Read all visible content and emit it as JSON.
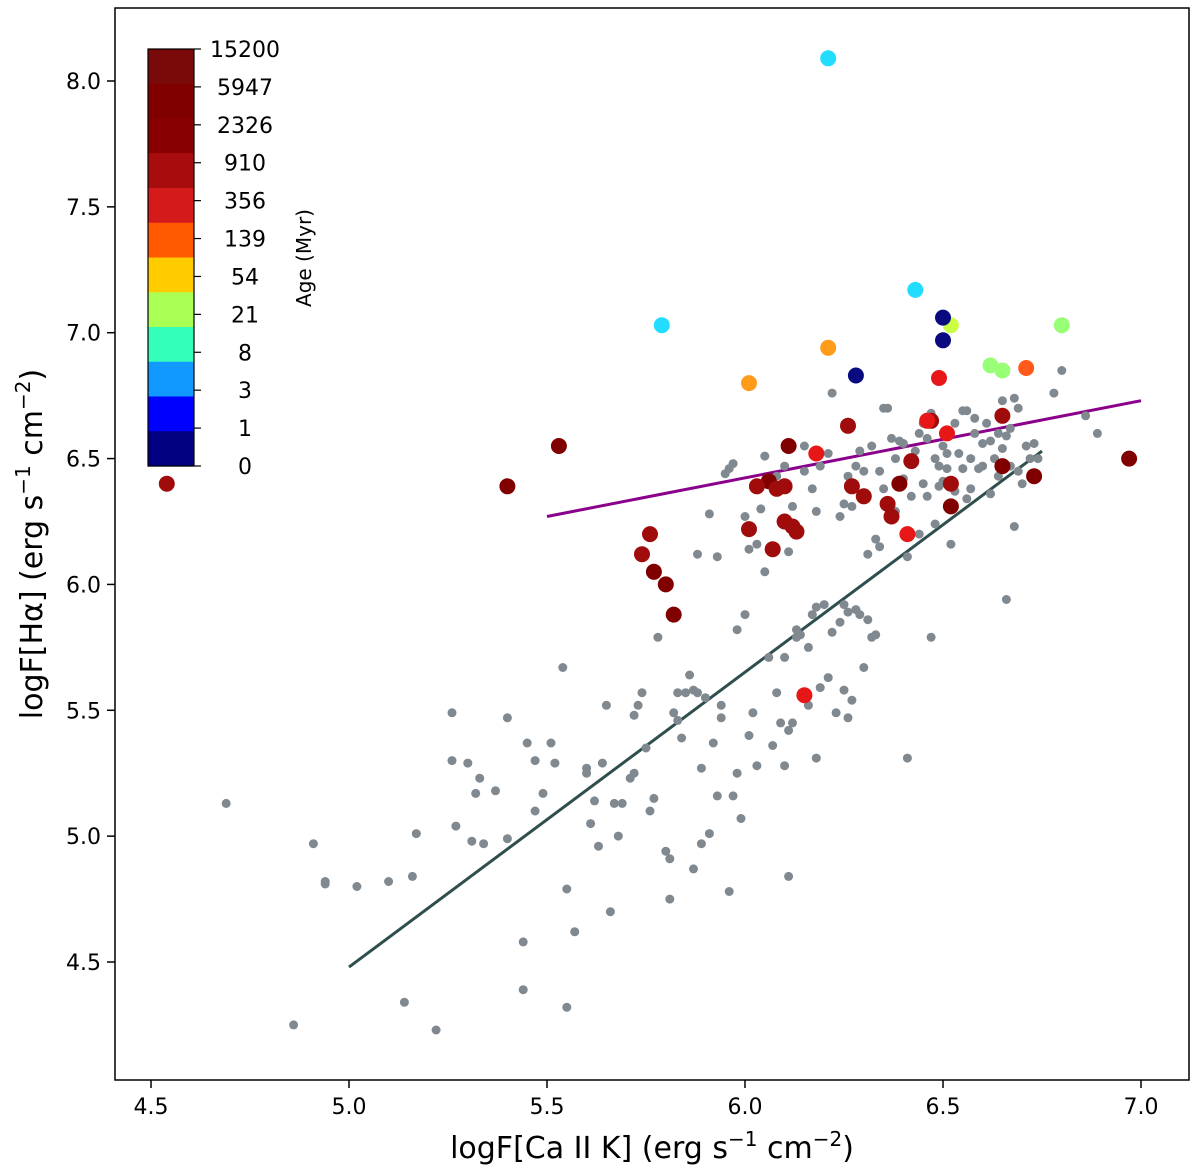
{
  "chart_data": {
    "type": "scatter",
    "xlabel_main": "logF[Ca II K] (erg s",
    "xlabel_sup": "−1",
    "xlabel_mid": " cm",
    "xlabel_sup2": "−2",
    "xlabel_end": ")",
    "ylabel_main": "logF[Hα] (erg s",
    "ylabel_sup": "−1",
    "ylabel_mid": " cm",
    "ylabel_sup2": "−2",
    "ylabel_end": ")",
    "xlim": [
      4.4,
      7.2
    ],
    "ylim": [
      4.0,
      8.3
    ],
    "xticks": [
      "4.5",
      "5.0",
      "5.5",
      "6.0",
      "6.5",
      "7.0"
    ],
    "yticks": [
      "4.5",
      "5.0",
      "5.5",
      "6.0",
      "6.5",
      "7.0",
      "7.5",
      "8.0"
    ],
    "grid": false,
    "colorbar": {
      "title": "Age (Myr)",
      "labels": [
        "15200",
        "5947",
        "2326",
        "910",
        "356",
        "139",
        "54",
        "21",
        "8",
        "3",
        "1",
        "0"
      ],
      "colors": [
        "#7a0a0a",
        "#800000",
        "#880000",
        "#a80d0d",
        "#d41a1a",
        "#ff5a00",
        "#ffcc00",
        "#aaff55",
        "#33ffbb",
        "#1199ff",
        "#0000ff",
        "#000080"
      ]
    },
    "lines": [
      {
        "color": "#2f4f4f",
        "x": [
          5.0,
          6.75
        ],
        "y": [
          4.48,
          6.53
        ]
      },
      {
        "color": "#8b008b",
        "x": [
          5.5,
          7.0
        ],
        "y": [
          6.27,
          6.73
        ]
      }
    ],
    "grey_series": {
      "color": "#808890",
      "points": [
        [
          4.69,
          5.13
        ],
        [
          4.86,
          4.25
        ],
        [
          4.91,
          4.97
        ],
        [
          4.94,
          4.82
        ],
        [
          4.94,
          4.81
        ],
        [
          5.02,
          4.8
        ],
        [
          5.1,
          4.82
        ],
        [
          5.14,
          4.34
        ],
        [
          5.16,
          4.84
        ],
        [
          5.17,
          5.01
        ],
        [
          5.22,
          4.23
        ],
        [
          5.26,
          5.49
        ],
        [
          5.26,
          5.3
        ],
        [
          5.27,
          5.04
        ],
        [
          5.3,
          5.29
        ],
        [
          5.31,
          4.98
        ],
        [
          5.32,
          5.17
        ],
        [
          5.33,
          5.23
        ],
        [
          5.34,
          4.97
        ],
        [
          5.37,
          5.18
        ],
        [
          5.4,
          5.47
        ],
        [
          5.4,
          4.99
        ],
        [
          5.44,
          4.58
        ],
        [
          5.44,
          4.39
        ],
        [
          5.45,
          5.37
        ],
        [
          5.47,
          5.3
        ],
        [
          5.47,
          5.1
        ],
        [
          5.49,
          5.17
        ],
        [
          5.51,
          5.37
        ],
        [
          5.52,
          5.29
        ],
        [
          5.54,
          5.67
        ],
        [
          5.55,
          4.79
        ],
        [
          5.55,
          4.32
        ],
        [
          5.57,
          4.62
        ],
        [
          5.6,
          5.27
        ],
        [
          5.6,
          5.25
        ],
        [
          5.61,
          5.05
        ],
        [
          5.62,
          5.14
        ],
        [
          5.63,
          4.96
        ],
        [
          5.64,
          5.29
        ],
        [
          5.65,
          5.52
        ],
        [
          5.66,
          4.7
        ],
        [
          5.67,
          5.13
        ],
        [
          5.68,
          5.0
        ],
        [
          5.69,
          5.13
        ],
        [
          5.71,
          5.23
        ],
        [
          5.72,
          5.48
        ],
        [
          5.72,
          5.25
        ],
        [
          5.73,
          5.52
        ],
        [
          5.74,
          5.57
        ],
        [
          5.75,
          5.35
        ],
        [
          5.76,
          5.1
        ],
        [
          5.77,
          5.15
        ],
        [
          5.78,
          5.79
        ],
        [
          5.8,
          4.94
        ],
        [
          5.81,
          4.75
        ],
        [
          5.81,
          4.91
        ],
        [
          5.82,
          5.49
        ],
        [
          5.83,
          5.57
        ],
        [
          5.83,
          5.46
        ],
        [
          5.84,
          5.39
        ],
        [
          5.85,
          5.57
        ],
        [
          5.86,
          5.64
        ],
        [
          5.87,
          5.58
        ],
        [
          5.87,
          4.87
        ],
        [
          5.88,
          6.12
        ],
        [
          5.88,
          5.57
        ],
        [
          5.89,
          5.27
        ],
        [
          5.89,
          4.97
        ],
        [
          5.9,
          5.55
        ],
        [
          5.91,
          5.01
        ],
        [
          5.91,
          6.28
        ],
        [
          5.92,
          5.37
        ],
        [
          5.93,
          6.11
        ],
        [
          5.93,
          5.16
        ],
        [
          5.94,
          5.52
        ],
        [
          5.94,
          5.47
        ],
        [
          5.95,
          6.44
        ],
        [
          5.96,
          6.46
        ],
        [
          5.96,
          4.78
        ],
        [
          5.97,
          6.48
        ],
        [
          5.97,
          5.16
        ],
        [
          5.98,
          5.82
        ],
        [
          5.98,
          5.25
        ],
        [
          5.99,
          5.07
        ],
        [
          6.0,
          6.27
        ],
        [
          6.0,
          5.88
        ],
        [
          6.01,
          6.14
        ],
        [
          6.01,
          5.4
        ],
        [
          6.02,
          5.49
        ],
        [
          6.03,
          6.16
        ],
        [
          6.03,
          5.28
        ],
        [
          6.04,
          6.3
        ],
        [
          6.05,
          6.05
        ],
        [
          6.05,
          6.51
        ],
        [
          6.06,
          5.71
        ],
        [
          6.07,
          5.36
        ],
        [
          6.08,
          6.43
        ],
        [
          6.08,
          5.57
        ],
        [
          6.09,
          5.45
        ],
        [
          6.1,
          6.47
        ],
        [
          6.1,
          5.71
        ],
        [
          6.1,
          5.28
        ],
        [
          6.11,
          6.13
        ],
        [
          6.11,
          5.42
        ],
        [
          6.11,
          4.84
        ],
        [
          6.12,
          6.31
        ],
        [
          6.12,
          5.45
        ],
        [
          6.13,
          5.79
        ],
        [
          6.13,
          5.82
        ],
        [
          6.14,
          5.8
        ],
        [
          6.15,
          6.55
        ],
        [
          6.15,
          6.45
        ],
        [
          6.16,
          5.75
        ],
        [
          6.16,
          5.52
        ],
        [
          6.17,
          6.38
        ],
        [
          6.17,
          5.88
        ],
        [
          6.18,
          6.29
        ],
        [
          6.18,
          5.31
        ],
        [
          6.18,
          5.91
        ],
        [
          6.19,
          6.47
        ],
        [
          6.19,
          5.59
        ],
        [
          6.2,
          5.92
        ],
        [
          6.21,
          6.52
        ],
        [
          6.21,
          5.63
        ],
        [
          6.22,
          5.81
        ],
        [
          6.22,
          6.76
        ],
        [
          6.23,
          5.49
        ],
        [
          6.24,
          6.27
        ],
        [
          6.24,
          5.85
        ],
        [
          6.25,
          6.32
        ],
        [
          6.25,
          5.92
        ],
        [
          6.25,
          5.58
        ],
        [
          6.26,
          5.89
        ],
        [
          6.26,
          6.43
        ],
        [
          6.26,
          5.47
        ],
        [
          6.27,
          6.31
        ],
        [
          6.27,
          5.54
        ],
        [
          6.28,
          5.9
        ],
        [
          6.28,
          6.47
        ],
        [
          6.29,
          6.53
        ],
        [
          6.29,
          5.88
        ],
        [
          6.3,
          6.45
        ],
        [
          6.3,
          5.67
        ],
        [
          6.31,
          5.86
        ],
        [
          6.31,
          6.12
        ],
        [
          6.32,
          6.55
        ],
        [
          6.32,
          5.79
        ],
        [
          6.33,
          6.18
        ],
        [
          6.33,
          5.8
        ],
        [
          6.34,
          6.15
        ],
        [
          6.34,
          6.45
        ],
        [
          6.35,
          6.7
        ],
        [
          6.35,
          6.38
        ],
        [
          6.36,
          6.7
        ],
        [
          6.37,
          6.58
        ],
        [
          6.37,
          6.3
        ],
        [
          6.38,
          6.5
        ],
        [
          6.38,
          6.29
        ],
        [
          6.39,
          6.57
        ],
        [
          6.4,
          6.42
        ],
        [
          6.4,
          6.56
        ],
        [
          6.41,
          6.11
        ],
        [
          6.41,
          5.31
        ],
        [
          6.42,
          6.48
        ],
        [
          6.42,
          6.35
        ],
        [
          6.43,
          6.53
        ],
        [
          6.44,
          6.6
        ],
        [
          6.44,
          6.2
        ],
        [
          6.45,
          6.4
        ],
        [
          6.45,
          6.64
        ],
        [
          6.46,
          6.35
        ],
        [
          6.46,
          6.58
        ],
        [
          6.47,
          5.79
        ],
        [
          6.47,
          6.68
        ],
        [
          6.48,
          6.5
        ],
        [
          6.48,
          6.24
        ],
        [
          6.49,
          6.47
        ],
        [
          6.49,
          6.39
        ],
        [
          6.5,
          6.55
        ],
        [
          6.5,
          6.41
        ],
        [
          6.51,
          6.52
        ],
        [
          6.51,
          6.46
        ],
        [
          6.52,
          6.3
        ],
        [
          6.52,
          6.16
        ],
        [
          6.53,
          6.64
        ],
        [
          6.53,
          6.37
        ],
        [
          6.54,
          6.52
        ],
        [
          6.55,
          6.69
        ],
        [
          6.55,
          6.46
        ],
        [
          6.56,
          6.34
        ],
        [
          6.56,
          6.69
        ],
        [
          6.57,
          6.5
        ],
        [
          6.57,
          6.38
        ],
        [
          6.58,
          6.6
        ],
        [
          6.58,
          6.66
        ],
        [
          6.59,
          6.46
        ],
        [
          6.6,
          6.56
        ],
        [
          6.6,
          6.47
        ],
        [
          6.61,
          6.64
        ],
        [
          6.62,
          6.57
        ],
        [
          6.62,
          6.36
        ],
        [
          6.63,
          6.5
        ],
        [
          6.64,
          6.6
        ],
        [
          6.64,
          6.43
        ],
        [
          6.65,
          6.54
        ],
        [
          6.65,
          6.73
        ],
        [
          6.66,
          6.59
        ],
        [
          6.66,
          5.94
        ],
        [
          6.67,
          6.62
        ],
        [
          6.67,
          6.47
        ],
        [
          6.68,
          6.74
        ],
        [
          6.68,
          6.23
        ],
        [
          6.69,
          6.45
        ],
        [
          6.7,
          6.4
        ],
        [
          6.71,
          6.55
        ],
        [
          6.72,
          6.5
        ],
        [
          6.73,
          6.56
        ],
        [
          6.74,
          6.5
        ],
        [
          6.78,
          6.76
        ],
        [
          6.8,
          6.85
        ],
        [
          6.86,
          6.67
        ],
        [
          6.89,
          6.6
        ],
        [
          6.69,
          6.7
        ]
      ]
    },
    "colored_series": [
      {
        "color": "#800000",
        "points": [
          [
            5.4,
            6.39
          ],
          [
            5.53,
            6.55
          ],
          [
            5.77,
            6.05
          ],
          [
            5.8,
            6.0
          ],
          [
            5.82,
            5.88
          ],
          [
            6.06,
            6.41
          ],
          [
            6.11,
            6.55
          ],
          [
            6.39,
            6.4
          ],
          [
            6.65,
            6.47
          ],
          [
            6.73,
            6.43
          ],
          [
            6.97,
            6.5
          ],
          [
            6.52,
            6.31
          ]
        ]
      },
      {
        "color": "#a00c0c",
        "points": [
          [
            4.54,
            6.4
          ],
          [
            5.74,
            6.12
          ],
          [
            5.76,
            6.2
          ],
          [
            6.01,
            6.22
          ],
          [
            6.03,
            6.39
          ],
          [
            6.07,
            6.14
          ],
          [
            6.08,
            6.38
          ],
          [
            6.1,
            6.39
          ],
          [
            6.1,
            6.25
          ],
          [
            6.12,
            6.23
          ],
          [
            6.13,
            6.21
          ],
          [
            6.26,
            6.63
          ],
          [
            6.27,
            6.39
          ],
          [
            6.3,
            6.35
          ],
          [
            6.36,
            6.32
          ],
          [
            6.37,
            6.27
          ],
          [
            6.42,
            6.49
          ],
          [
            6.47,
            6.65
          ],
          [
            6.52,
            6.4
          ],
          [
            6.65,
            6.67
          ]
        ]
      },
      {
        "color": "#e81717",
        "points": [
          [
            6.15,
            5.56
          ],
          [
            6.18,
            6.52
          ],
          [
            6.41,
            6.2
          ],
          [
            6.49,
            6.82
          ],
          [
            6.51,
            6.6
          ],
          [
            6.46,
            6.65
          ]
        ]
      },
      {
        "color": "#ff5a1a",
        "points": [
          [
            6.71,
            6.86
          ]
        ]
      },
      {
        "color": "#ff9c1a",
        "points": [
          [
            6.01,
            6.8
          ],
          [
            6.21,
            6.94
          ]
        ]
      },
      {
        "color": "#ccff44",
        "points": [
          [
            6.52,
            7.03
          ]
        ]
      },
      {
        "color": "#99ff77",
        "points": [
          [
            6.62,
            6.87
          ],
          [
            6.65,
            6.85
          ],
          [
            6.8,
            7.03
          ]
        ]
      },
      {
        "color": "#22ddff",
        "points": [
          [
            5.79,
            7.03
          ],
          [
            6.21,
            8.09
          ],
          [
            6.43,
            7.17
          ]
        ]
      },
      {
        "color": "#0a0a80",
        "points": [
          [
            6.28,
            6.83
          ],
          [
            6.5,
            7.06
          ],
          [
            6.5,
            6.97
          ]
        ]
      }
    ]
  }
}
